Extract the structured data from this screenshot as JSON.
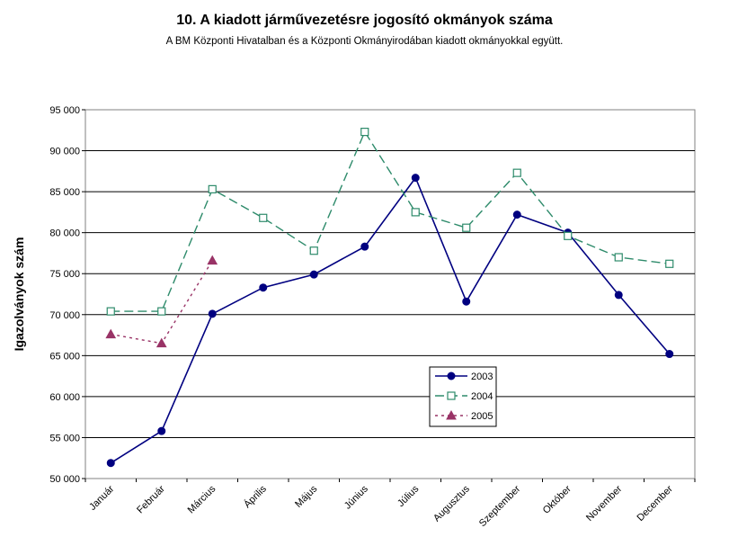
{
  "chart_data": {
    "type": "line",
    "title": "10. A  kiadott járművezetésre  jogosító okmányok száma",
    "subtitle": "A BM Központi Hivatalban és a Központi Okmányirodában kiadott okmányokkal együtt.",
    "ylabel": "Igazolványok szám",
    "xlabel": "",
    "ylim": [
      50000,
      95000
    ],
    "yticks": [
      "50 000",
      "55 000",
      "60 000",
      "65 000",
      "70 000",
      "75 000",
      "80 000",
      "85 000",
      "90 000",
      "95 000"
    ],
    "categories": [
      "Január",
      "Február",
      "Március",
      "Április",
      "Május",
      "Június",
      "Július",
      "Augusztus",
      "Szeptember",
      "Október",
      "November",
      "December"
    ],
    "grid": true,
    "legend_position": "lower-right-inside",
    "series": [
      {
        "name": "2003",
        "color": "#000080",
        "style": "solid",
        "marker": "circle",
        "values": [
          51900,
          55800,
          70100,
          73300,
          74900,
          78300,
          86700,
          71600,
          82200,
          80000,
          72400,
          65200
        ]
      },
      {
        "name": "2004",
        "color": "#2e8b6b",
        "style": "dashed",
        "marker": "square-open",
        "values": [
          70400,
          70400,
          85300,
          81800,
          77800,
          92300,
          82500,
          80600,
          87300,
          79600,
          77000,
          76200
        ]
      },
      {
        "name": "2005",
        "color": "#993366",
        "style": "dotted",
        "marker": "triangle",
        "values": [
          67600,
          66500,
          76600,
          null,
          null,
          null,
          null,
          null,
          null,
          null,
          null,
          null
        ]
      }
    ]
  }
}
